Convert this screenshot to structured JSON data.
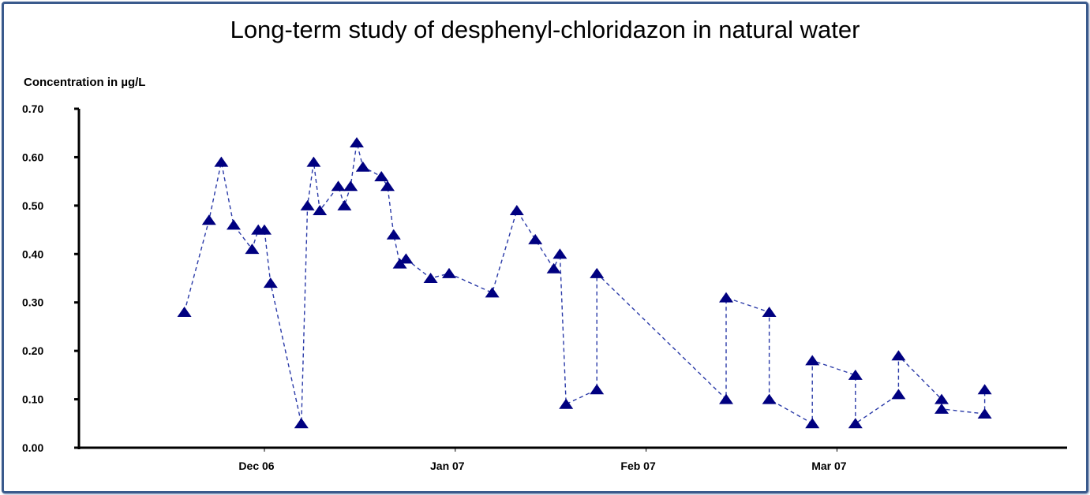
{
  "chart_data": {
    "type": "line",
    "title": "Long-term study of desphenyl-chloridazon in natural water",
    "ylabel": "Concentration in µg/L",
    "xlabel": "",
    "x_units": "days since 1 Dec 2006 (approx.)",
    "ylim": [
      0,
      0.7
    ],
    "yticks": [
      "0.00",
      "0.10",
      "0.20",
      "0.30",
      "0.40",
      "0.50",
      "0.60",
      "0.70"
    ],
    "xticks": [
      {
        "label": "Dec 06",
        "day": 0
      },
      {
        "label": "Jan 07",
        "day": 31
      },
      {
        "label": "Feb 07",
        "day": 62
      },
      {
        "label": "Mar 07",
        "day": 93
      }
    ],
    "xlim": [
      -30,
      131
    ],
    "grid": false,
    "series": [
      {
        "name": "desphenyl-chloridazon",
        "color": "#000080",
        "marker": "triangle",
        "line": "dashed",
        "points": [
          [
            -13,
            0.28
          ],
          [
            -9,
            0.47
          ],
          [
            -7,
            0.59
          ],
          [
            -5,
            0.46
          ],
          [
            -2,
            0.41
          ],
          [
            -1,
            0.45
          ],
          [
            0,
            0.45
          ],
          [
            1,
            0.34
          ],
          [
            6,
            0.05
          ],
          [
            7,
            0.5
          ],
          [
            8,
            0.59
          ],
          [
            9,
            0.49
          ],
          [
            12,
            0.54
          ],
          [
            13,
            0.5
          ],
          [
            14,
            0.54
          ],
          [
            15,
            0.63
          ],
          [
            16,
            0.58
          ],
          [
            19,
            0.56
          ],
          [
            20,
            0.54
          ],
          [
            21,
            0.44
          ],
          [
            22,
            0.38
          ],
          [
            23,
            0.39
          ],
          [
            27,
            0.35
          ],
          [
            30,
            0.36
          ],
          [
            37,
            0.32
          ],
          [
            41,
            0.49
          ],
          [
            44,
            0.43
          ],
          [
            47,
            0.37
          ],
          [
            48,
            0.4
          ],
          [
            49,
            0.09
          ],
          [
            54,
            0.12
          ],
          [
            54,
            0.36
          ],
          [
            75,
            0.1
          ],
          [
            75,
            0.31
          ],
          [
            82,
            0.28
          ],
          [
            82,
            0.1
          ],
          [
            89,
            0.05
          ],
          [
            89,
            0.18
          ],
          [
            96,
            0.15
          ],
          [
            96,
            0.05
          ],
          [
            103,
            0.11
          ],
          [
            103,
            0.19
          ],
          [
            110,
            0.1
          ],
          [
            110,
            0.08
          ],
          [
            117,
            0.07
          ],
          [
            117,
            0.12
          ]
        ]
      }
    ]
  }
}
